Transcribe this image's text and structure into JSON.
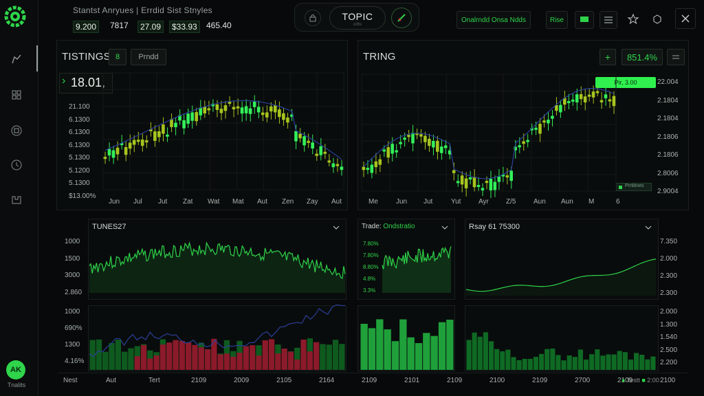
{
  "header": {
    "title": "Stantst Anryues  |  Errdid Sist Stnyles",
    "tickers": [
      "9.200",
      "7817",
      "27.09",
      "$33.93",
      "465.40"
    ],
    "topic": {
      "title": "TOPIC",
      "subtitle": "ortts"
    },
    "filter_label": "Onalrndd  Onsa Ndds",
    "rise_label": "Rise"
  },
  "sidebar": {
    "user_initials": "AK",
    "user_label": "Tnalits"
  },
  "panel_listings": {
    "title": "TISTINGS",
    "count_chip": "8",
    "mode_chip": "Prndd",
    "current_price": "18.01,",
    "y_labels": [
      "21.100",
      "6.1300",
      "6.1300",
      "6.1300",
      "5.1300",
      "5.1200",
      "5.1300",
      "$13.00%"
    ],
    "x_labels": [
      "Jun",
      "Jul",
      "Jut",
      "Zat",
      "Wat",
      "Mat",
      "Aut",
      "Zen",
      "Zay",
      "Aut"
    ]
  },
  "panel_tring": {
    "title": "TRING",
    "percent": "851.4%",
    "flag_label": "Pir, 3.00",
    "legend_label": "Prrtitines",
    "y_labels": [
      "22.004",
      "2.1804",
      "2.1804",
      "2.1806",
      "2.1806",
      "2.8006",
      "2.9004"
    ],
    "x_labels": [
      "Me",
      "Jun",
      "Jut",
      "Yut",
      "Ayr",
      "Z/5",
      "Aun",
      "Aun",
      "M",
      "6"
    ]
  },
  "panel_tunes": {
    "title": "TUNES27",
    "y_labels": [
      "1000",
      "1500",
      "3000",
      "2.860"
    ]
  },
  "panel_trade": {
    "title_prefix": "Trade:",
    "title_value": "Ondstratio",
    "y_labels": [
      "7.80%",
      "7.80%",
      "8.80%",
      "4.8%",
      "3.3%"
    ]
  },
  "panel_rsi": {
    "title": "Rsay 61 75300",
    "y_labels": [
      "7.350",
      "2.000",
      "2.300",
      "2.300"
    ]
  },
  "panel_volume": {
    "y_labels": [
      "1000",
      "690%",
      "1300",
      "4.16%"
    ]
  },
  "panel_volume_r": {
    "y_labels": [
      "2.000",
      "1.300",
      "1.540",
      "2.500",
      "2.200"
    ]
  },
  "footer": {
    "x_labels": [
      "Nest",
      "Aut",
      "Tert",
      "2109",
      "2009",
      "2105",
      "2164",
      "2109",
      "2101",
      "2109",
      "2100",
      "2109",
      "2700",
      "2109",
      "2100"
    ],
    "status": "Testt",
    "time": "2:00"
  },
  "colors": {
    "accent": "#2fd44a",
    "bright_green": "#33f05a",
    "olive": "#a6c51e",
    "red": "#8b1a2a",
    "background": "#07090a"
  }
}
